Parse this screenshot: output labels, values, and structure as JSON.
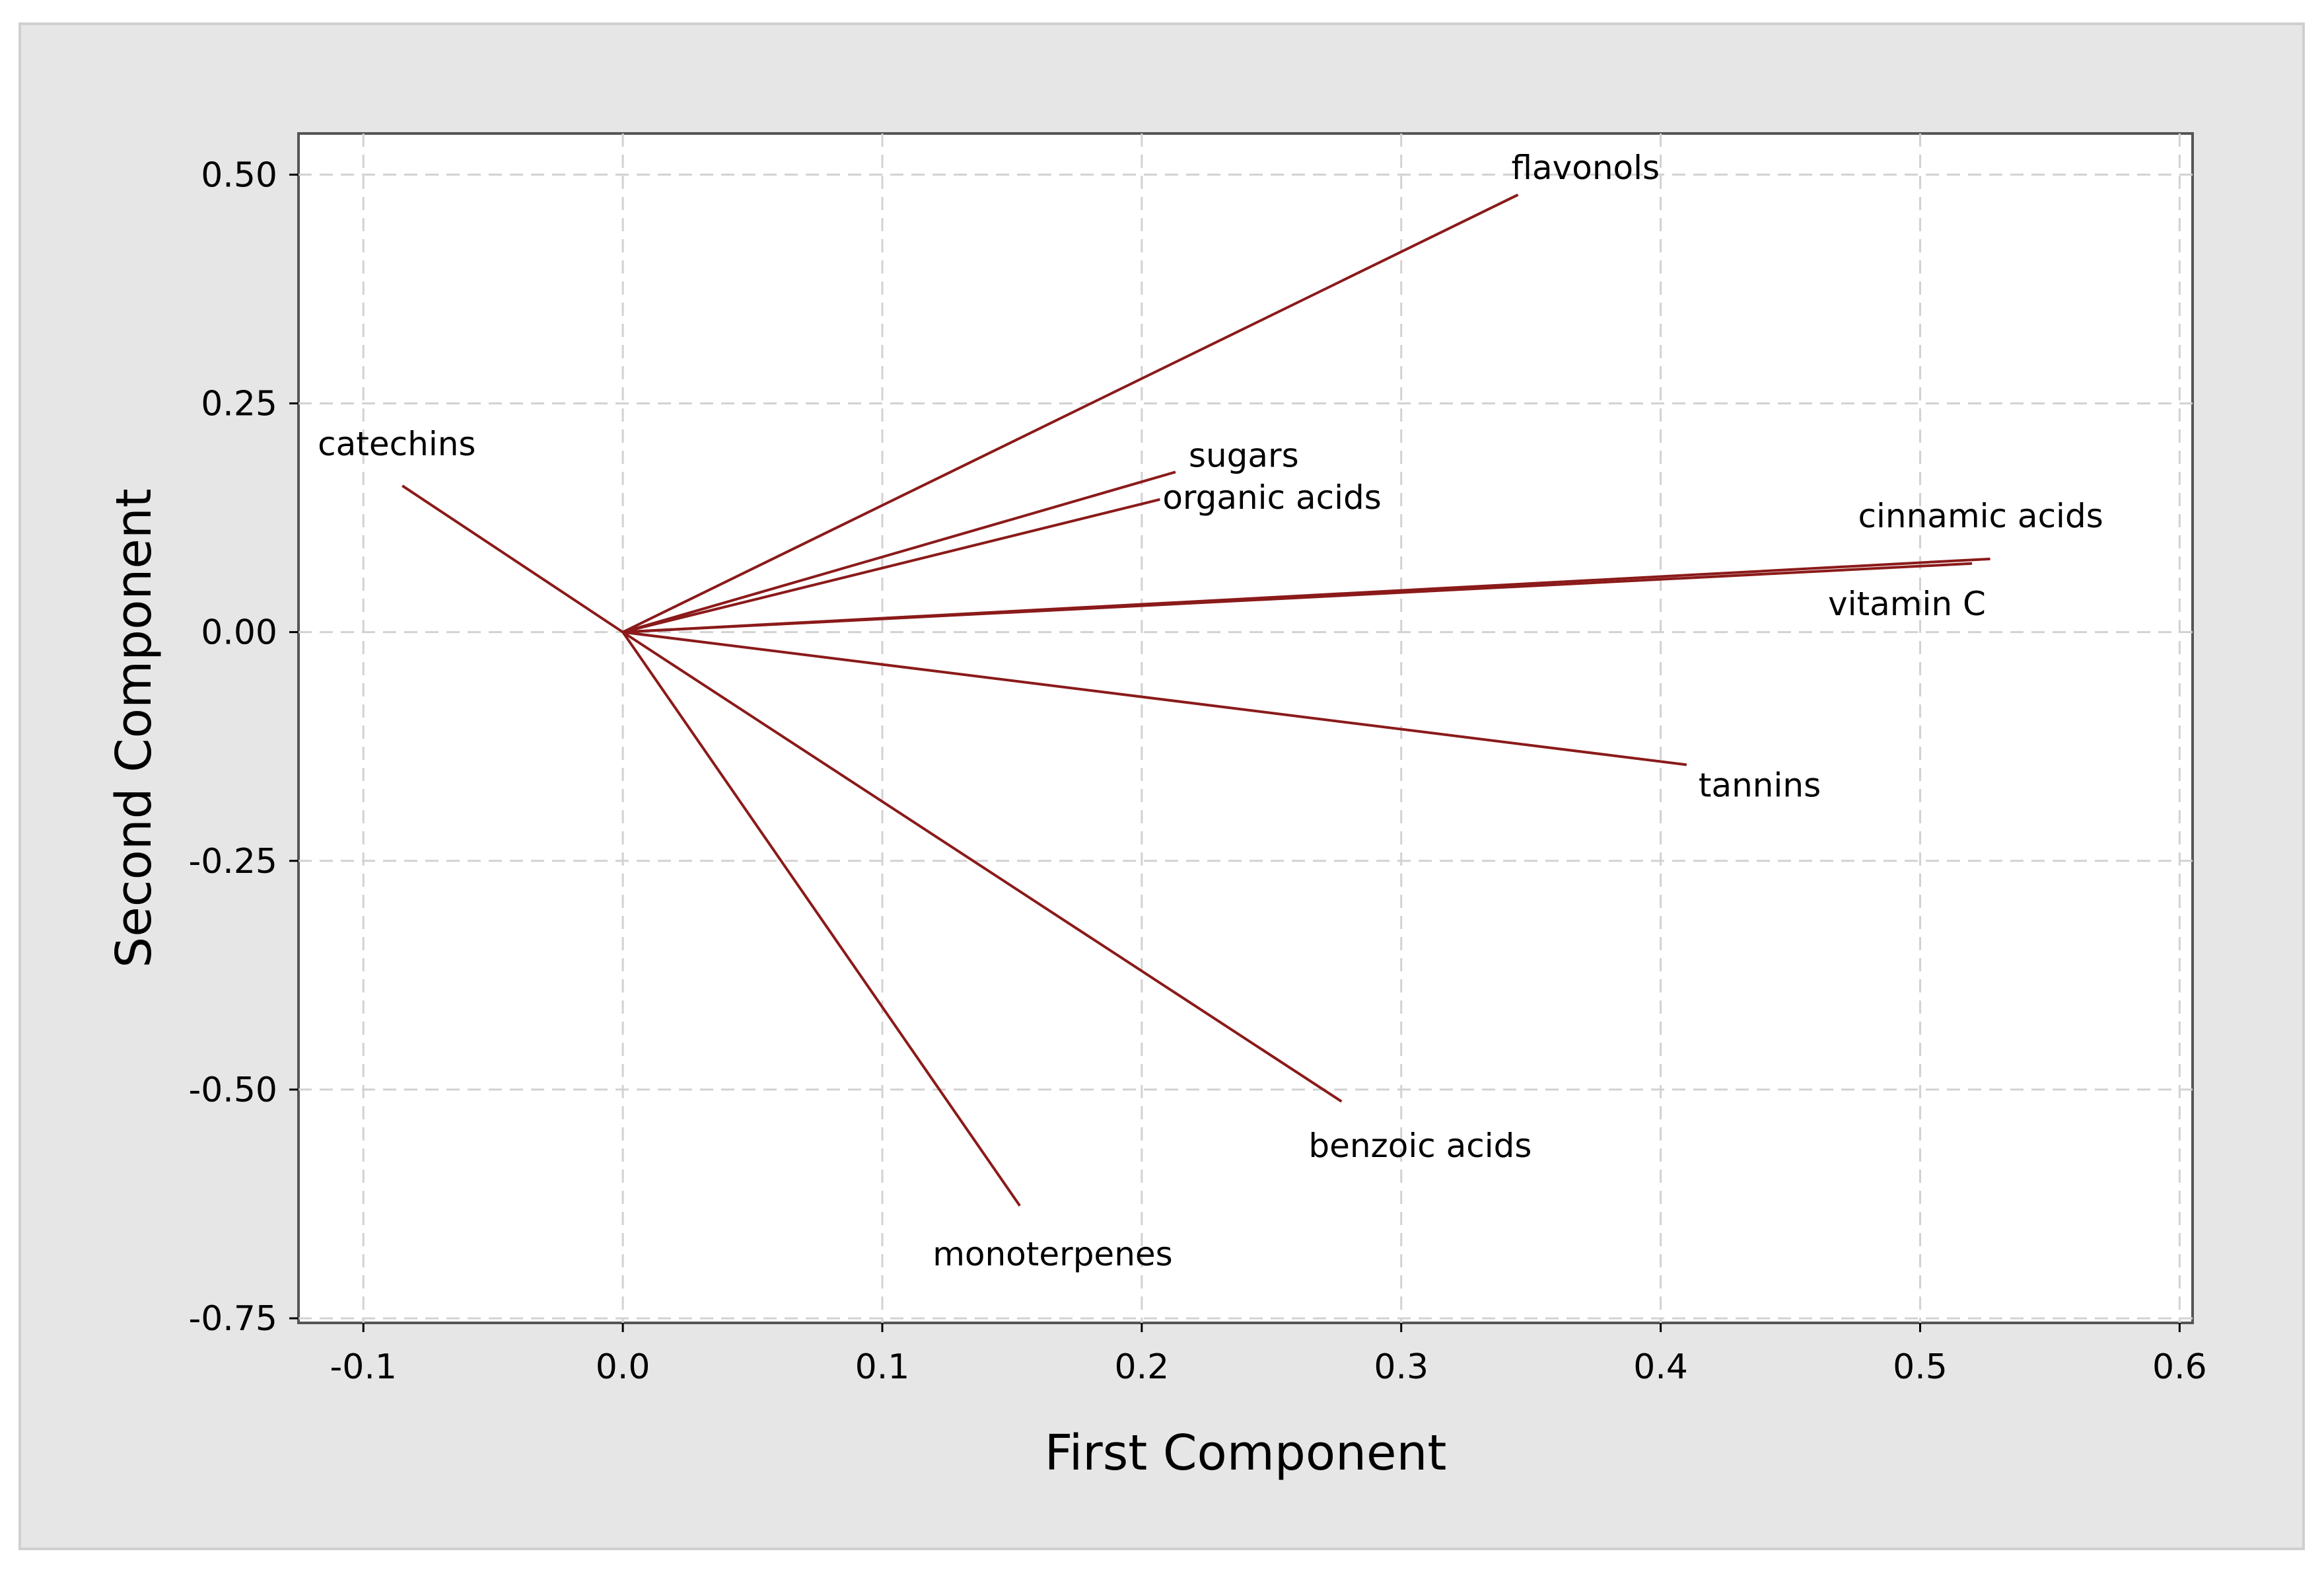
{
  "chart_data": {
    "type": "line",
    "chart_kind": "loading-plot",
    "xlabel": "First Component",
    "ylabel": "Second Component",
    "xlim": [
      -0.125,
      0.605
    ],
    "ylim": [
      -0.755,
      0.545
    ],
    "x_ticks": [
      -0.1,
      0.0,
      0.1,
      0.2,
      0.3,
      0.4,
      0.5,
      0.6
    ],
    "x_tick_labels": [
      "-0.1",
      "0.0",
      "0.1",
      "0.2",
      "0.3",
      "0.4",
      "0.5",
      "0.6"
    ],
    "y_ticks": [
      0.5,
      0.25,
      0.0,
      -0.25,
      -0.5,
      -0.75
    ],
    "y_tick_labels": [
      "0.50",
      "0.25",
      "0.00",
      "-0.25",
      "-0.50",
      "-0.75"
    ],
    "grid": true,
    "line_color": "#8b1a1a",
    "vectors": [
      {
        "name": "flavonols",
        "x": 0.345,
        "y": 0.478
      },
      {
        "name": "catechins",
        "x": -0.085,
        "y": 0.16
      },
      {
        "name": "sugars",
        "x": 0.213,
        "y": 0.175
      },
      {
        "name": "organic acids",
        "x": 0.207,
        "y": 0.145
      },
      {
        "name": "cinnamic acids",
        "x": 0.527,
        "y": 0.08
      },
      {
        "name": "vitamin C",
        "x": 0.52,
        "y": 0.075
      },
      {
        "name": "tannins",
        "x": 0.41,
        "y": -0.145
      },
      {
        "name": "benzoic acids",
        "x": 0.277,
        "y": -0.513
      },
      {
        "name": "monoterpenes",
        "x": 0.153,
        "y": -0.627
      }
    ]
  }
}
